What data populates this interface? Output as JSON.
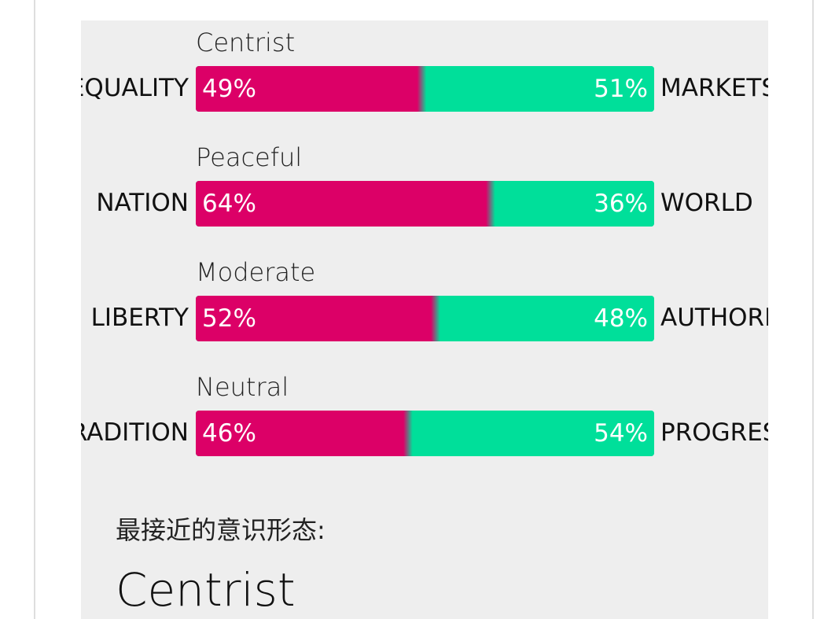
{
  "colors": {
    "left": "#dc0067",
    "right": "#00df9a",
    "panel": "#eeeeee"
  },
  "axes": [
    {
      "label": "Centrist",
      "left_name": "EQUALITY",
      "right_name": "MARKETS",
      "left_pct": 49,
      "right_pct": 51,
      "left_text": "49%",
      "right_text": "51%"
    },
    {
      "label": "Peaceful",
      "left_name": "NATION",
      "right_name": "WORLD",
      "left_pct": 64,
      "right_pct": 36,
      "left_text": "64%",
      "right_text": "36%"
    },
    {
      "label": "Moderate",
      "left_name": "LIBERTY",
      "right_name": "AUTHORITY",
      "left_pct": 52,
      "right_pct": 48,
      "left_text": "52%",
      "right_text": "48%"
    },
    {
      "label": "Neutral",
      "left_name": "TRADITION",
      "right_name": "PROGRESS",
      "left_pct": 46,
      "right_pct": 54,
      "left_text": "46%",
      "right_text": "54%"
    }
  ],
  "result": {
    "label": "最接近的意识形态:",
    "value": "Centrist"
  }
}
